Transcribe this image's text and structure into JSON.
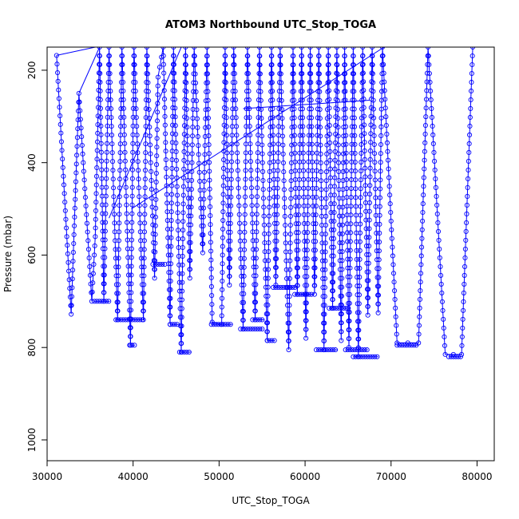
{
  "chart_data": {
    "type": "scatter",
    "title": "ATOM3 Northbound UTC_Stop_TOGA",
    "xlabel": "UTC_Stop_TOGA",
    "ylabel": "Pressure (mbar)",
    "xlim": [
      30000,
      82000
    ],
    "ylim": [
      1045,
      150
    ],
    "y_reversed": true,
    "x_ticks": [
      30000,
      40000,
      50000,
      60000,
      70000,
      80000
    ],
    "y_ticks": [
      200,
      400,
      600,
      800,
      1000
    ],
    "x_tick_labels": [
      "30000",
      "40000",
      "50000",
      "60000",
      "70000",
      "80000"
    ],
    "y_tick_labels": [
      "200",
      "400",
      "600",
      "800",
      "1000"
    ],
    "series_color": "#0000ff",
    "marker": "open-circle",
    "line": true,
    "legend": "none",
    "grid": false,
    "profile_vertices": [
      [
        31100,
        168
      ],
      [
        32800,
        728
      ],
      [
        33700,
        250
      ],
      [
        35200,
        700
      ],
      [
        35600,
        560
      ],
      [
        36100,
        150
      ],
      [
        36600,
        700
      ],
      [
        37200,
        150
      ],
      [
        38200,
        740
      ],
      [
        38700,
        150
      ],
      [
        39700,
        795
      ],
      [
        40100,
        150
      ],
      [
        41200,
        740
      ],
      [
        41600,
        150
      ],
      [
        42500,
        650
      ],
      [
        42900,
        215
      ],
      [
        43500,
        150
      ],
      [
        44300,
        750
      ],
      [
        44700,
        150
      ],
      [
        45600,
        810
      ],
      [
        46100,
        150
      ],
      [
        46600,
        650
      ],
      [
        47100,
        150
      ],
      [
        48100,
        595
      ],
      [
        48600,
        150
      ],
      [
        49200,
        745
      ],
      [
        50300,
        750
      ],
      [
        50700,
        150
      ],
      [
        51200,
        665
      ],
      [
        51700,
        150
      ],
      [
        52800,
        760
      ],
      [
        53300,
        150
      ],
      [
        54200,
        740
      ],
      [
        54700,
        150
      ],
      [
        55600,
        785
      ],
      [
        56100,
        150
      ],
      [
        56600,
        665
      ],
      [
        57100,
        150
      ],
      [
        58100,
        805
      ],
      [
        58600,
        150
      ],
      [
        59100,
        685
      ],
      [
        59600,
        150
      ],
      [
        60100,
        780
      ],
      [
        60600,
        150
      ],
      [
        61100,
        685
      ],
      [
        61600,
        150
      ],
      [
        62200,
        805
      ],
      [
        62700,
        150
      ],
      [
        63200,
        715
      ],
      [
        63700,
        150
      ],
      [
        64200,
        785
      ],
      [
        64600,
        150
      ],
      [
        65100,
        800
      ],
      [
        65600,
        150
      ],
      [
        66200,
        820
      ],
      [
        66700,
        150
      ],
      [
        67300,
        730
      ],
      [
        67800,
        150
      ],
      [
        68500,
        725
      ],
      [
        69000,
        150
      ],
      [
        70700,
        790
      ],
      [
        73200,
        790
      ],
      [
        74300,
        150
      ],
      [
        76300,
        815
      ],
      [
        78200,
        815
      ],
      [
        79500,
        150
      ]
    ],
    "connector_lines": [
      [
        [
          31100,
          168
        ],
        [
          35600,
          150
        ]
      ],
      [
        [
          33700,
          250
        ],
        [
          36100,
          150
        ]
      ],
      [
        [
          37200,
          520
        ],
        [
          45600,
          150
        ]
      ],
      [
        [
          39800,
          500
        ],
        [
          69200,
          150
        ]
      ],
      [
        [
          52800,
          283
        ],
        [
          67500,
          265
        ]
      ]
    ],
    "plateaus": [
      [
        35500,
        37300,
        700
      ],
      [
        38000,
        41300,
        740
      ],
      [
        39600,
        40200,
        795
      ],
      [
        42300,
        43700,
        620
      ],
      [
        44300,
        45400,
        750
      ],
      [
        45400,
        46700,
        810
      ],
      [
        49100,
        51500,
        750
      ],
      [
        52500,
        55100,
        760
      ],
      [
        53900,
        55200,
        740
      ],
      [
        55600,
        56500,
        785
      ],
      [
        56300,
        59000,
        670
      ],
      [
        58800,
        61000,
        685
      ],
      [
        61300,
        63800,
        805
      ],
      [
        62800,
        65300,
        715
      ],
      [
        64700,
        67300,
        805
      ],
      [
        65600,
        68500,
        820
      ],
      [
        70700,
        73200,
        795
      ],
      [
        76700,
        78200,
        820
      ]
    ]
  }
}
